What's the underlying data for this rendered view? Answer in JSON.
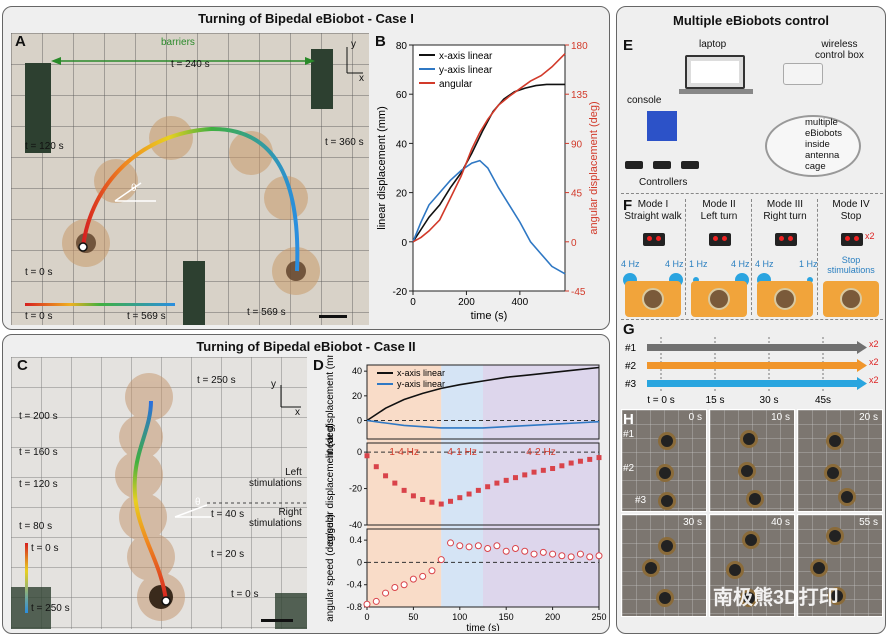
{
  "titles": {
    "case1": "Turning of Bipedal eBiobot - Case I",
    "case2": "Turning of Bipedal eBiobot - Case II",
    "multi": "Multiple eBiobots control"
  },
  "panel_letters": [
    "A",
    "B",
    "C",
    "D",
    "E",
    "F",
    "G",
    "H"
  ],
  "panelA": {
    "barriers": "barriers",
    "times": [
      "t = 240 s",
      "t = 120 s",
      "t = 360 s",
      "t = 0 s",
      "t = 569 s"
    ],
    "colorbar_start": "t = 0 s",
    "colorbar_end": "t = 569 s",
    "theta": "θ",
    "axis_x": "x",
    "axis_y": "y"
  },
  "panelC": {
    "times_left": [
      "t = 200 s",
      "t = 160 s",
      "t = 120 s",
      "t = 80 s"
    ],
    "times_right": [
      "t = 250 s",
      "t = 40 s",
      "t = 20 s",
      "t = 0 s"
    ],
    "left_stim": "Left\nstimulations",
    "right_stim": "Right\nstimulations",
    "colorbar_start": "t = 0 s",
    "colorbar_end": "t = 250 s",
    "theta": "θ",
    "axis_x": "x",
    "axis_y": "y"
  },
  "chart_data": [
    {
      "id": "B",
      "type": "line",
      "xlabel": "time (s)",
      "ylabel": "linear displacement (mm)",
      "y2label": "angular displacement (deg)",
      "xlim": [
        0,
        569
      ],
      "ylim": [
        -20,
        80
      ],
      "y2lim": [
        -45,
        180
      ],
      "xticks": [
        0,
        200,
        400
      ],
      "yticks": [
        -20,
        0,
        20,
        40,
        60,
        80
      ],
      "y2ticks": [
        -45,
        0,
        45,
        90,
        135,
        180
      ],
      "series": [
        {
          "name": "x-axis linear",
          "color": "#111111",
          "axis": "left",
          "x": [
            0,
            30,
            60,
            100,
            140,
            180,
            220,
            260,
            300,
            340,
            380,
            420,
            460,
            500,
            540,
            569
          ],
          "y": [
            0,
            5,
            10,
            15,
            22,
            28,
            36,
            45,
            53,
            58,
            61,
            62.5,
            63.5,
            64,
            64,
            64
          ]
        },
        {
          "name": "y-axis linear",
          "color": "#2f78c4",
          "axis": "left",
          "x": [
            0,
            30,
            60,
            100,
            140,
            180,
            220,
            250,
            280,
            320,
            360,
            400,
            440,
            480,
            520,
            569
          ],
          "y": [
            0,
            8,
            15,
            20,
            25,
            29,
            32,
            33,
            30,
            22,
            15,
            8,
            0,
            -5,
            -10,
            -13
          ]
        },
        {
          "name": "angular",
          "color": "#d23a2a",
          "axis": "right",
          "x": [
            0,
            30,
            60,
            100,
            140,
            180,
            220,
            250,
            280,
            320,
            360,
            400,
            440,
            480,
            520,
            569
          ],
          "y": [
            0,
            4,
            10,
            20,
            40,
            60,
            85,
            100,
            112,
            125,
            133,
            140,
            147,
            152,
            160,
            172
          ]
        }
      ]
    },
    {
      "id": "D",
      "type": "line",
      "xlabel": "time (s)",
      "xlim": [
        0,
        250
      ],
      "xticks": [
        0,
        50,
        100,
        150,
        200,
        250
      ],
      "bands": [
        {
          "label": "1-4 Hz",
          "from": 0,
          "to": 80,
          "color": "#f9dcc8"
        },
        {
          "label": "4-1 Hz",
          "from": 80,
          "to": 125,
          "color": "#d5e4f5"
        },
        {
          "label": "4-2 Hz",
          "from": 125,
          "to": 250,
          "color": "#ddd6ec"
        }
      ],
      "subplots": [
        {
          "ylabel": "linear displacement (mm)",
          "ylim": [
            -15,
            45
          ],
          "yticks": [
            0,
            20,
            40
          ],
          "series": [
            {
              "name": "x-axis linear",
              "color": "#111111",
              "x": [
                0,
                20,
                40,
                60,
                80,
                100,
                125,
                150,
                175,
                200,
                225,
                250
              ],
              "y": [
                0,
                10,
                17,
                22,
                26,
                29,
                32,
                35,
                37,
                39,
                41,
                43
              ]
            },
            {
              "name": "y-axis linear",
              "color": "#2f78c4",
              "x": [
                0,
                20,
                40,
                60,
                80,
                100,
                125,
                150,
                175,
                200,
                225,
                250
              ],
              "y": [
                0,
                -2,
                -4,
                -5,
                -6,
                -6,
                -6,
                -5,
                -4,
                -3,
                -2,
                -1
              ]
            }
          ]
        },
        {
          "ylabel": "angular displacement (deg)",
          "ylim": [
            -40,
            5
          ],
          "yticks": [
            -40,
            -20,
            0
          ],
          "series": [
            {
              "name": "angular",
              "color": "#d9434a",
              "marker": "square",
              "x": [
                0,
                10,
                20,
                30,
                40,
                50,
                60,
                70,
                80,
                90,
                100,
                110,
                120,
                130,
                140,
                150,
                160,
                170,
                180,
                190,
                200,
                210,
                220,
                230,
                240,
                250
              ],
              "y": [
                -2,
                -8,
                -13,
                -17,
                -21,
                -24,
                -26,
                -27.5,
                -28.5,
                -27,
                -25,
                -23,
                -21,
                -19,
                -17,
                -15.5,
                -14,
                -12.5,
                -11,
                -10,
                -9,
                -7.5,
                -6,
                -5,
                -4,
                -3
              ]
            }
          ]
        },
        {
          "ylabel": "angular speed (deg/sec)",
          "ylim": [
            -0.8,
            0.6
          ],
          "yticks": [
            -0.8,
            -0.4,
            0,
            0.4
          ],
          "series": [
            {
              "name": "speed",
              "color": "#d9434a",
              "marker": "open-circle",
              "x": [
                0,
                10,
                20,
                30,
                40,
                50,
                60,
                70,
                80,
                90,
                100,
                110,
                120,
                130,
                140,
                150,
                160,
                170,
                180,
                190,
                200,
                210,
                220,
                230,
                240,
                250
              ],
              "y": [
                -0.75,
                -0.7,
                -0.55,
                -0.45,
                -0.4,
                -0.3,
                -0.25,
                -0.15,
                0.05,
                0.35,
                0.3,
                0.28,
                0.3,
                0.25,
                0.3,
                0.2,
                0.25,
                0.2,
                0.15,
                0.18,
                0.15,
                0.12,
                0.1,
                0.15,
                0.1,
                0.12
              ]
            }
          ]
        }
      ]
    }
  ],
  "panelE": {
    "laptop": "laptop",
    "control_box": "wireless\ncontrol box",
    "console": "console",
    "controllers": "Controllers",
    "caption": "multiple\neBiobots\ninside\nantenna\ncage"
  },
  "panelF": {
    "modes": [
      {
        "name": "Mode I",
        "action": "Straight walk",
        "left_hz": "4 Hz",
        "right_hz": "4 Hz"
      },
      {
        "name": "Mode II",
        "action": "Left turn",
        "left_hz": "1 Hz",
        "right_hz": "4 Hz"
      },
      {
        "name": "Mode III",
        "action": "Right turn",
        "left_hz": "4 Hz",
        "right_hz": "1 Hz"
      },
      {
        "name": "Mode IV",
        "action": "Stop",
        "note": "Stop\nstimulations",
        "badge": "x2"
      }
    ]
  },
  "panelG": {
    "rows": [
      "#1",
      "#2",
      "#3"
    ],
    "colors": [
      "#707070",
      "#f0952b",
      "#29a5df"
    ],
    "badge": "x2",
    "times": [
      "t = 0 s",
      "15 s",
      "30 s",
      "45s"
    ]
  },
  "panelH": {
    "times": [
      "0 s",
      "10 s",
      "20 s",
      "30 s",
      "40 s",
      "55 s"
    ],
    "labels": [
      "#1",
      "#2",
      "#3"
    ],
    "watermark": "南极熊3D打印"
  }
}
